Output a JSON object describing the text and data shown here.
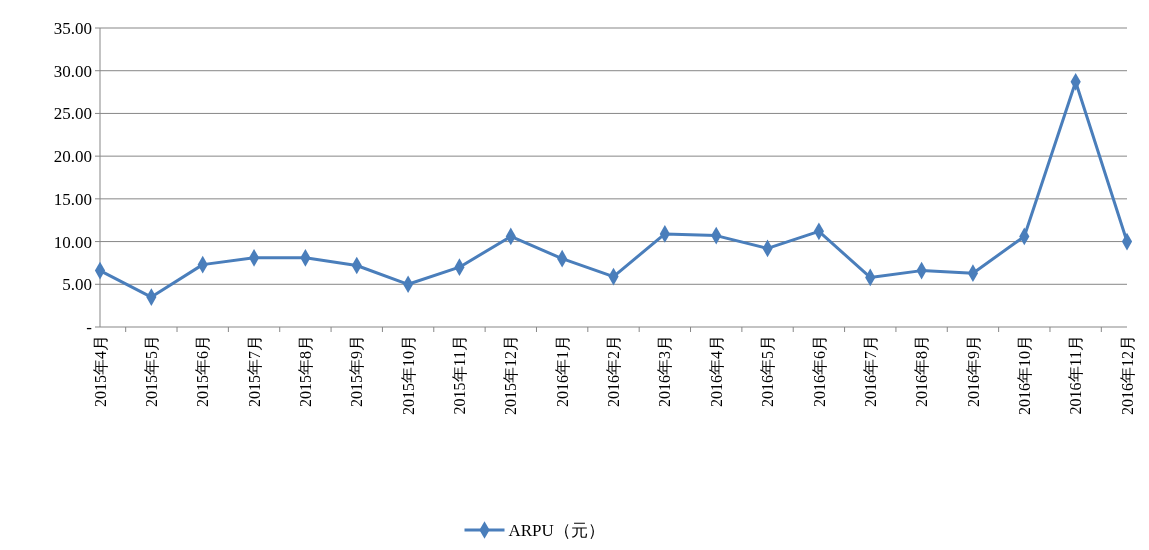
{
  "chart_data": {
    "type": "line",
    "categories": [
      "2015年4月",
      "2015年5月",
      "2015年6月",
      "2015年7月",
      "2015年8月",
      "2015年9月",
      "2015年10月",
      "2015年11月",
      "2015年12月",
      "2016年1月",
      "2016年2月",
      "2016年3月",
      "2016年4月",
      "2016年5月",
      "2016年6月",
      "2016年7月",
      "2016年8月",
      "2016年9月",
      "2016年10月",
      "2016年11月",
      "2016年12月"
    ],
    "series": [
      {
        "name": "ARPU（元）",
        "color": "#4a7ebb",
        "values": [
          6.6,
          3.5,
          7.3,
          8.1,
          8.1,
          7.2,
          5.0,
          7.0,
          10.6,
          8.0,
          5.9,
          10.9,
          10.7,
          9.2,
          11.2,
          5.8,
          6.6,
          6.3,
          10.6,
          28.7,
          10.0
        ]
      }
    ],
    "ylim": [
      0,
      35
    ],
    "yticks": [
      {
        "value": 0,
        "label": "-"
      },
      {
        "value": 5,
        "label": "5.00"
      },
      {
        "value": 10,
        "label": "10.00"
      },
      {
        "value": 15,
        "label": "15.00"
      },
      {
        "value": 20,
        "label": "20.00"
      },
      {
        "value": 25,
        "label": "25.00"
      },
      {
        "value": 30,
        "label": "30.00"
      },
      {
        "value": 35,
        "label": "35.00"
      }
    ],
    "grid": "y",
    "legend": "bottom",
    "marker": "diamond",
    "line_style": "solid"
  }
}
